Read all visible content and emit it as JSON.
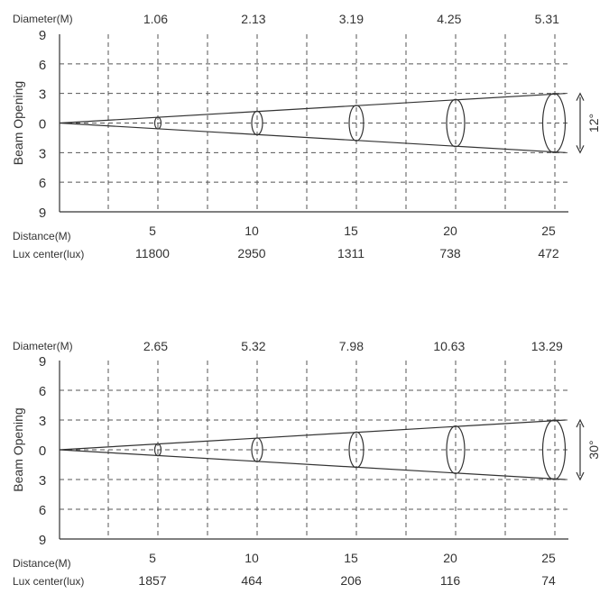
{
  "colors": {
    "ink": "#333333",
    "grid": "#555555",
    "background": "#ffffff"
  },
  "chart_data": [
    {
      "type": "beam-diagram",
      "diameter_label": "Diameter(M)",
      "y_axis_label": "Beam Opening",
      "y_ticks": [
        "9",
        "6",
        "3",
        "0",
        "3",
        "6",
        "9"
      ],
      "y_range": [
        -9,
        9
      ],
      "x_range": [
        0,
        26
      ],
      "distance_label": "Distance(M)",
      "lux_label": "Lux center(lux)",
      "beam_angle_label": "12°",
      "beam_angle_deg": 12,
      "distances": [
        5,
        10,
        15,
        20,
        25
      ],
      "distance_labels": [
        "5",
        "10",
        "15",
        "20",
        "25"
      ],
      "diameters": [
        "1.06",
        "2.13",
        "3.19",
        "4.25",
        "5.31"
      ],
      "lux": [
        "11800",
        "2950",
        "1311",
        "738",
        "472"
      ],
      "beam_half_width_at": [
        0.6,
        1.2,
        1.8,
        2.4,
        3.0
      ],
      "beam_edge_at_end": 3.0
    },
    {
      "type": "beam-diagram",
      "diameter_label": "Diameter(M)",
      "y_axis_label": "Beam Opening",
      "y_ticks": [
        "9",
        "6",
        "3",
        "0",
        "3",
        "6",
        "9"
      ],
      "y_range": [
        -9,
        9
      ],
      "x_range": [
        0,
        26
      ],
      "distance_label": "Distance(M)",
      "lux_label": "Lux center(lux)",
      "beam_angle_label": "30°",
      "beam_angle_deg": 30,
      "distances": [
        5,
        10,
        15,
        20,
        25
      ],
      "distance_labels": [
        "5",
        "10",
        "15",
        "20",
        "25"
      ],
      "diameters": [
        "2.65",
        "5.32",
        "7.98",
        "10.63",
        "13.29"
      ],
      "lux": [
        "1857",
        "464",
        "206",
        "116",
        "74"
      ],
      "beam_half_width_at": [
        0.6,
        1.2,
        1.8,
        2.4,
        3.0
      ],
      "beam_edge_at_end": 3.0
    }
  ]
}
